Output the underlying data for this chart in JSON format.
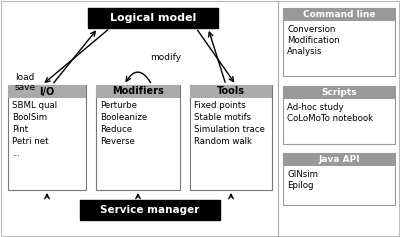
{
  "logical_model": "Logical model",
  "service_manager": "Service manager",
  "io_header": "I/O",
  "io_items": [
    "SBML qual",
    "BoolSim",
    "Pint",
    "Petri net",
    "..."
  ],
  "mod_header": "Modifiers",
  "mod_items": [
    "Perturbe",
    "Booleanize",
    "Reduce",
    "Reverse"
  ],
  "tools_header": "Tools",
  "tools_items": [
    "Fixed points",
    "Stable motifs",
    "Simulation trace",
    "Random walk"
  ],
  "cmd_header": "Command line",
  "cmd_items": [
    "Conversion",
    "Modification",
    "Analysis"
  ],
  "scripts_header": "Scripts",
  "scripts_items": [
    "Ad-hoc study",
    "CoLoMoTo notebook"
  ],
  "japi_header": "Java API",
  "japi_items": [
    "GINsim",
    "Epilog"
  ],
  "load_save_label": "load\nsave",
  "modify_label": "modify",
  "header_gray": "#999999",
  "module_header_gray": "#aaaaaa",
  "border_color": "#aaaaaa",
  "divider_color": "#aaaaaa"
}
